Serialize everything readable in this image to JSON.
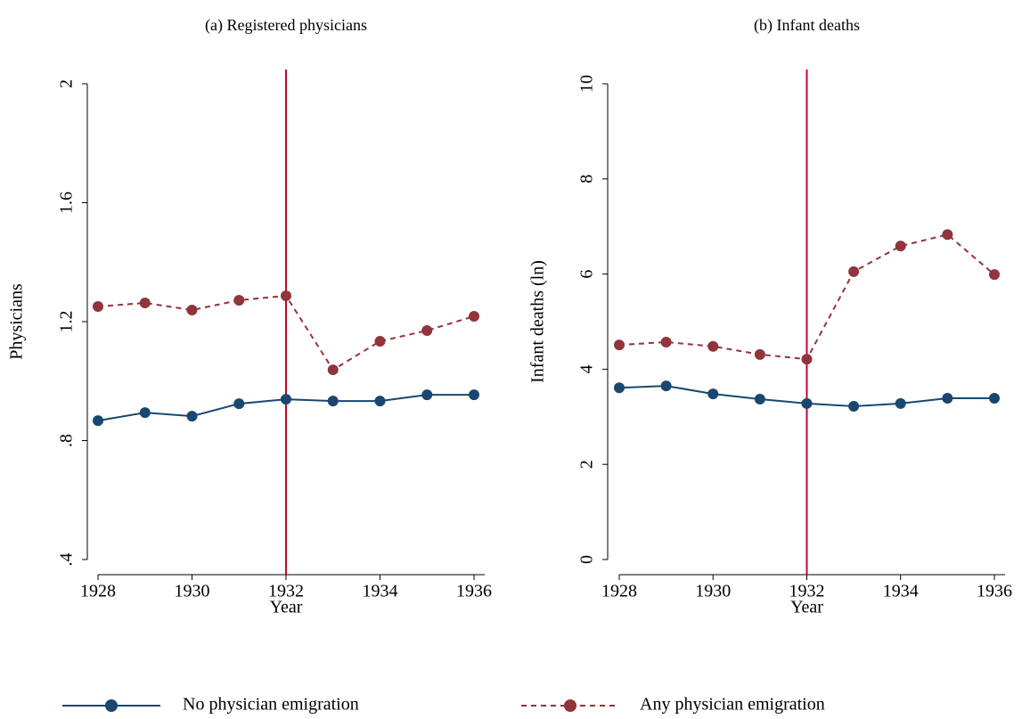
{
  "chart_data": [
    {
      "type": "line",
      "title": "(a) Registered physicians",
      "x_label": "Year",
      "y_label": "Physicians",
      "x": [
        1928,
        1929,
        1930,
        1931,
        1932,
        1933,
        1934,
        1935,
        1936
      ],
      "series": [
        {
          "name": "No physician emigration",
          "color": "#1a476f",
          "dash": false,
          "values": [
            0.867,
            0.894,
            0.882,
            0.924,
            0.939,
            0.933,
            0.933,
            0.954,
            0.954
          ]
        },
        {
          "name": "Any physician emigration",
          "color": "#90353b",
          "dash": true,
          "values": [
            1.251,
            1.263,
            1.239,
            1.272,
            1.287,
            1.038,
            1.134,
            1.17,
            1.218
          ]
        }
      ],
      "xlim": [
        1928,
        1936
      ],
      "xticks": [
        1928,
        1930,
        1932,
        1934,
        1936
      ],
      "ylim": [
        0.4,
        2
      ],
      "yticks": [
        {
          "value": 0.4,
          "label": ".4"
        },
        {
          "value": 0.8,
          "label": ".8"
        },
        1.2,
        1.6,
        2
      ],
      "vline": 1932,
      "vline_color": "#c10534"
    },
    {
      "type": "line",
      "title": "(b) Infant deaths",
      "x_label": "Year",
      "y_label": "Infant deaths (ln)",
      "x": [
        1928,
        1929,
        1930,
        1931,
        1932,
        1933,
        1934,
        1935,
        1936
      ],
      "series": [
        {
          "name": "No physician emigration",
          "color": "#1a476f",
          "dash": false,
          "values": [
            3.61,
            3.65,
            3.48,
            3.37,
            3.28,
            3.22,
            3.28,
            3.39,
            3.39
          ]
        },
        {
          "name": "Any physician emigration",
          "color": "#90353b",
          "dash": true,
          "values": [
            4.51,
            4.57,
            4.48,
            4.31,
            4.21,
            6.05,
            6.59,
            6.83,
            5.99
          ]
        }
      ],
      "xlim": [
        1928,
        1936
      ],
      "xticks": [
        1928,
        1930,
        1932,
        1934,
        1936
      ],
      "ylim": [
        0,
        10
      ],
      "yticks": [
        0,
        2,
        4,
        6,
        8,
        10
      ],
      "vline": 1932,
      "vline_color": "#c10534"
    }
  ]
}
